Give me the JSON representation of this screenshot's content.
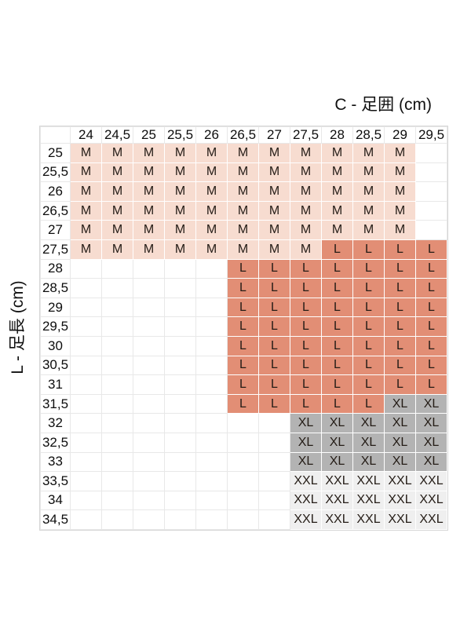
{
  "axis_titles": {
    "top": "C - 足囲 (cm)",
    "left": "L - 足長 (cm)"
  },
  "chart_data": {
    "type": "table",
    "title": "C - 足囲 (cm)",
    "col_axis_title": "C - 足囲 (cm)",
    "row_axis_title": "L - 足長 (cm)",
    "columns": [
      "24",
      "24,5",
      "25",
      "25,5",
      "26",
      "26,5",
      "27",
      "27,5",
      "28",
      "28,5",
      "29",
      "29,5"
    ],
    "rows": [
      {
        "label": "25",
        "cells": [
          "M",
          "M",
          "M",
          "M",
          "M",
          "M",
          "M",
          "M",
          "M",
          "M",
          "M",
          ""
        ]
      },
      {
        "label": "25,5",
        "cells": [
          "M",
          "M",
          "M",
          "M",
          "M",
          "M",
          "M",
          "M",
          "M",
          "M",
          "M",
          ""
        ]
      },
      {
        "label": "26",
        "cells": [
          "M",
          "M",
          "M",
          "M",
          "M",
          "M",
          "M",
          "M",
          "M",
          "M",
          "M",
          ""
        ]
      },
      {
        "label": "26,5",
        "cells": [
          "M",
          "M",
          "M",
          "M",
          "M",
          "M",
          "M",
          "M",
          "M",
          "M",
          "M",
          ""
        ]
      },
      {
        "label": "27",
        "cells": [
          "M",
          "M",
          "M",
          "M",
          "M",
          "M",
          "M",
          "M",
          "M",
          "M",
          "M",
          ""
        ]
      },
      {
        "label": "27,5",
        "cells": [
          "M",
          "M",
          "M",
          "M",
          "M",
          "M",
          "M",
          "M",
          "L",
          "L",
          "L",
          "L"
        ]
      },
      {
        "label": "28",
        "cells": [
          "",
          "",
          "",
          "",
          "",
          "L",
          "L",
          "L",
          "L",
          "L",
          "L",
          "L"
        ]
      },
      {
        "label": "28,5",
        "cells": [
          "",
          "",
          "",
          "",
          "",
          "L",
          "L",
          "L",
          "L",
          "L",
          "L",
          "L"
        ]
      },
      {
        "label": "29",
        "cells": [
          "",
          "",
          "",
          "",
          "",
          "L",
          "L",
          "L",
          "L",
          "L",
          "L",
          "L"
        ]
      },
      {
        "label": "29,5",
        "cells": [
          "",
          "",
          "",
          "",
          "",
          "L",
          "L",
          "L",
          "L",
          "L",
          "L",
          "L"
        ]
      },
      {
        "label": "30",
        "cells": [
          "",
          "",
          "",
          "",
          "",
          "L",
          "L",
          "L",
          "L",
          "L",
          "L",
          "L"
        ]
      },
      {
        "label": "30,5",
        "cells": [
          "",
          "",
          "",
          "",
          "",
          "L",
          "L",
          "L",
          "L",
          "L",
          "L",
          "L"
        ]
      },
      {
        "label": "31",
        "cells": [
          "",
          "",
          "",
          "",
          "",
          "L",
          "L",
          "L",
          "L",
          "L",
          "L",
          "L"
        ]
      },
      {
        "label": "31,5",
        "cells": [
          "",
          "",
          "",
          "",
          "",
          "L",
          "L",
          "L",
          "L",
          "L",
          "XL",
          "XL"
        ]
      },
      {
        "label": "32",
        "cells": [
          "",
          "",
          "",
          "",
          "",
          "",
          "",
          "XL",
          "XL",
          "XL",
          "XL",
          "XL"
        ]
      },
      {
        "label": "32,5",
        "cells": [
          "",
          "",
          "",
          "",
          "",
          "",
          "",
          "XL",
          "XL",
          "XL",
          "XL",
          "XL"
        ]
      },
      {
        "label": "33",
        "cells": [
          "",
          "",
          "",
          "",
          "",
          "",
          "",
          "XL",
          "XL",
          "XL",
          "XL",
          "XL"
        ]
      },
      {
        "label": "33,5",
        "cells": [
          "",
          "",
          "",
          "",
          "",
          "",
          "",
          "XXL",
          "XXL",
          "XXL",
          "XXL",
          "XXL"
        ]
      },
      {
        "label": "34",
        "cells": [
          "",
          "",
          "",
          "",
          "",
          "",
          "",
          "XXL",
          "XXL",
          "XXL",
          "XXL",
          "XXL"
        ]
      },
      {
        "label": "34,5",
        "cells": [
          "",
          "",
          "",
          "",
          "",
          "",
          "",
          "XXL",
          "XXL",
          "XXL",
          "XXL",
          "XXL"
        ]
      }
    ],
    "size_colors": {
      "M": "#f7dcd0",
      "L": "#e28e75",
      "XL": "#b3b3b3",
      "XXL": "#efefef"
    },
    "layout_hints": {
      "grid": true,
      "empty_cell_color": "#ffffff",
      "row_header_side": "left",
      "col_header_side": "top"
    }
  }
}
